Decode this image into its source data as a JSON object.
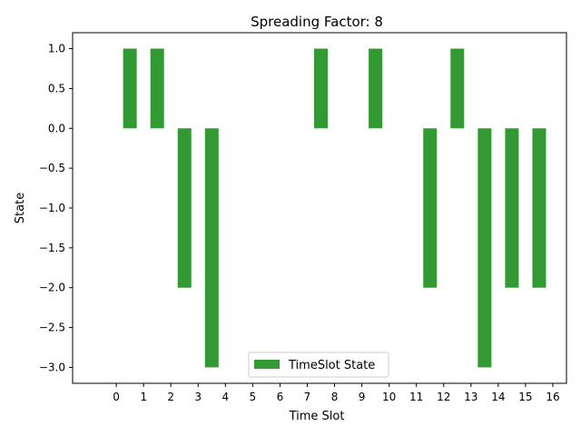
{
  "chart_data": {
    "type": "bar",
    "title": "Spreading Factor: 8",
    "xlabel": "Time Slot",
    "ylabel": "State",
    "x": [
      0.5,
      1.5,
      2.5,
      3.5,
      4.5,
      5.5,
      6.5,
      7.5,
      8.5,
      9.5,
      10.5,
      11.5,
      12.5,
      13.5,
      14.5,
      15.5
    ],
    "values": [
      1,
      1,
      -2,
      -3,
      0,
      0,
      0,
      1,
      0,
      1,
      0,
      -2,
      1,
      -3,
      -2,
      -2
    ],
    "series": [
      {
        "name": "TimeSlot State",
        "color": "#339933"
      }
    ],
    "xticks": [
      0,
      1,
      2,
      3,
      4,
      5,
      6,
      7,
      8,
      9,
      10,
      11,
      12,
      13,
      14,
      15,
      16
    ],
    "xtick_labels": [
      "0",
      "1",
      "2",
      "3",
      "4",
      "5",
      "6",
      "7",
      "8",
      "9",
      "10",
      "11",
      "12",
      "13",
      "14",
      "15",
      "16"
    ],
    "yticks": [
      1.0,
      0.5,
      0.0,
      -0.5,
      -1.0,
      -1.5,
      -2.0,
      -2.5,
      -3.0
    ],
    "ytick_labels": [
      "1.0",
      "0.5",
      "0.0",
      "−0.5",
      "−1.0",
      "−1.5",
      "−2.0",
      "−2.5",
      "−3.0"
    ],
    "xlim": [
      -1.6,
      16.5
    ],
    "ylim": [
      -3.2,
      1.2
    ],
    "bar_width": 0.5,
    "grid": false,
    "legend": "bottom-center"
  }
}
